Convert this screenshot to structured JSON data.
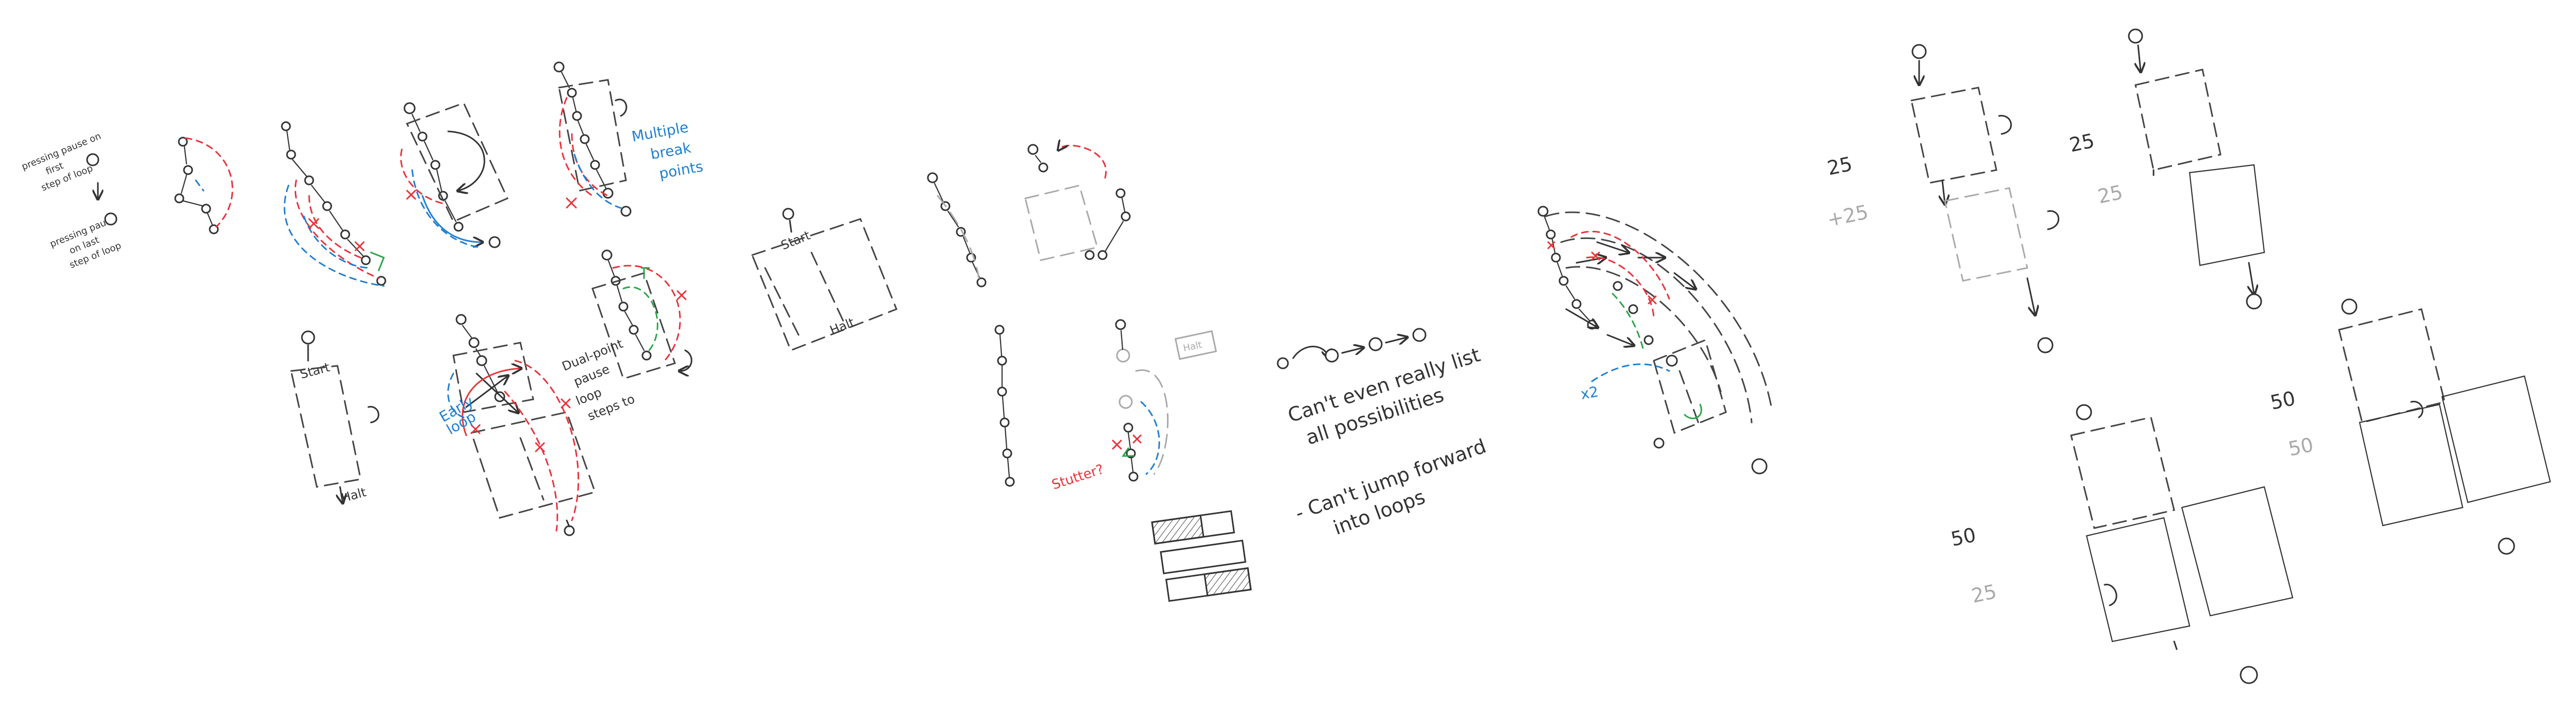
{
  "colors": {
    "ink": "#333333",
    "grey": "#a9a9a9",
    "red": "#e8333a",
    "blue": "#1f7fd1",
    "green": "#2aa44a"
  },
  "notes": {
    "first_a": [
      "pressing pause on",
      "first",
      "step of loop"
    ],
    "first_b": [
      "pressing pause",
      "on last",
      "step of loop"
    ],
    "start": "Start",
    "halt": "Halt",
    "multiple": [
      "Multiple",
      "break",
      "points"
    ],
    "dual": [
      "Dual-point",
      "pause",
      "loop",
      "steps to"
    ],
    "early": [
      "Early",
      "loop"
    ],
    "stutter": "Stutter?",
    "halt_box": "Halt",
    "cant_list": [
      "Can't even really list",
      "all possibilities"
    ],
    "cant_jump": [
      "- Can't jump forward",
      "into loops"
    ],
    "x2": "x2",
    "scores": {
      "a": "25",
      "a2": "+25",
      "b": "25",
      "b2": "25",
      "c": "50",
      "c2": "25",
      "d": "50",
      "d2": "50"
    }
  },
  "icons": [
    "node-circle-icon",
    "arrow-icon",
    "loop-arrow-icon",
    "cross-mark-icon",
    "hatched-bar-icon"
  ]
}
